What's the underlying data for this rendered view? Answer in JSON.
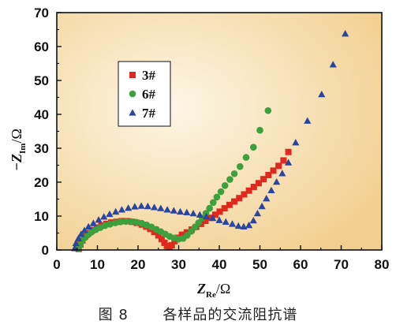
{
  "caption": {
    "figure_no": "图 8",
    "title": "各样品的交流阻抗谱"
  },
  "chart_data": {
    "type": "scatter",
    "xlim": [
      0,
      80
    ],
    "ylim": [
      0,
      70
    ],
    "x_ticks": [
      0,
      10,
      20,
      30,
      40,
      50,
      60,
      70,
      80
    ],
    "y_ticks": [
      0,
      10,
      20,
      30,
      40,
      50,
      60,
      70
    ],
    "xlabel": {
      "main": "Z",
      "sub": "Re",
      "unit": "/Ω"
    },
    "ylabel": {
      "main": "−Z",
      "sub": "Im",
      "unit": "/Ω"
    },
    "legend_position": "top-left",
    "grid": false,
    "background": {
      "center": "#fdf6e6",
      "edge": "#f2cf8f"
    },
    "series": [
      {
        "name": "3#",
        "marker": "square",
        "color": "#e0281e",
        "points": [
          [
            5.4,
            0.3
          ],
          [
            5.8,
            1.6
          ],
          [
            6.3,
            2.8
          ],
          [
            7.0,
            4.0
          ],
          [
            7.8,
            5.0
          ],
          [
            8.8,
            5.9
          ],
          [
            9.9,
            6.6
          ],
          [
            11.0,
            7.2
          ],
          [
            12.2,
            7.7
          ],
          [
            13.4,
            8.1
          ],
          [
            14.7,
            8.3
          ],
          [
            16.0,
            8.5
          ],
          [
            17.3,
            8.5
          ],
          [
            18.5,
            8.3
          ],
          [
            19.7,
            8.0
          ],
          [
            20.9,
            7.5
          ],
          [
            22.0,
            6.9
          ],
          [
            23.0,
            6.2
          ],
          [
            24.0,
            5.3
          ],
          [
            25.0,
            4.3
          ],
          [
            25.8,
            3.2
          ],
          [
            26.5,
            2.1
          ],
          [
            27.1,
            1.2
          ],
          [
            27.7,
            0.8
          ],
          [
            28.3,
            1.4
          ],
          [
            29.0,
            2.6
          ],
          [
            29.8,
            3.6
          ],
          [
            30.8,
            4.5
          ],
          [
            32.0,
            5.2
          ],
          [
            33.2,
            6.0
          ],
          [
            34.3,
            6.8
          ],
          [
            35.5,
            7.7
          ],
          [
            36.6,
            8.6
          ],
          [
            37.8,
            9.5
          ],
          [
            39.0,
            10.4
          ],
          [
            40.1,
            11.3
          ],
          [
            41.3,
            12.3
          ],
          [
            42.5,
            13.3
          ],
          [
            43.7,
            14.3
          ],
          [
            44.9,
            15.3
          ],
          [
            46.1,
            16.4
          ],
          [
            47.3,
            17.5
          ],
          [
            48.5,
            18.6
          ],
          [
            49.7,
            19.7
          ],
          [
            50.9,
            20.9
          ],
          [
            52.1,
            22.1
          ],
          [
            53.3,
            23.4
          ],
          [
            54.6,
            24.8
          ],
          [
            55.8,
            26.4
          ],
          [
            57.0,
            28.9
          ]
        ]
      },
      {
        "name": "6#",
        "marker": "circle",
        "color": "#3ca03c",
        "points": [
          [
            5.3,
            0.4
          ],
          [
            5.7,
            1.5
          ],
          [
            6.2,
            2.6
          ],
          [
            6.9,
            3.6
          ],
          [
            7.7,
            4.5
          ],
          [
            8.6,
            5.3
          ],
          [
            9.6,
            6.0
          ],
          [
            10.7,
            6.6
          ],
          [
            11.9,
            7.2
          ],
          [
            13.1,
            7.6
          ],
          [
            14.4,
            8.0
          ],
          [
            15.7,
            8.3
          ],
          [
            17.0,
            8.4
          ],
          [
            18.3,
            8.4
          ],
          [
            19.6,
            8.2
          ],
          [
            20.9,
            7.9
          ],
          [
            22.1,
            7.4
          ],
          [
            23.3,
            6.8
          ],
          [
            24.5,
            6.1
          ],
          [
            25.6,
            5.4
          ],
          [
            26.7,
            4.7
          ],
          [
            27.8,
            4.0
          ],
          [
            28.9,
            3.5
          ],
          [
            30.0,
            3.2
          ],
          [
            31.1,
            3.4
          ],
          [
            32.1,
            4.3
          ],
          [
            33.1,
            5.5
          ],
          [
            34.0,
            6.7
          ],
          [
            34.9,
            8.0
          ],
          [
            35.8,
            9.4
          ],
          [
            36.7,
            10.8
          ],
          [
            37.6,
            12.3
          ],
          [
            38.5,
            14.0
          ],
          [
            39.4,
            15.6
          ],
          [
            40.4,
            17.2
          ],
          [
            41.4,
            19.0
          ],
          [
            42.6,
            20.8
          ],
          [
            43.7,
            22.5
          ],
          [
            45.1,
            24.6
          ],
          [
            46.6,
            27.3
          ],
          [
            48.4,
            30.3
          ],
          [
            50.0,
            35.3
          ],
          [
            52.0,
            41.1
          ]
        ]
      },
      {
        "name": "7#",
        "marker": "triangle",
        "color": "#2a45a0",
        "points": [
          [
            4.4,
            0.5
          ],
          [
            4.7,
            2.0
          ],
          [
            5.3,
            3.4
          ],
          [
            6.0,
            4.7
          ],
          [
            6.8,
            5.8
          ],
          [
            7.8,
            6.9
          ],
          [
            9.0,
            7.9
          ],
          [
            10.3,
            8.9
          ],
          [
            11.6,
            9.8
          ],
          [
            13.0,
            10.6
          ],
          [
            14.5,
            11.3
          ],
          [
            16.0,
            11.9
          ],
          [
            17.6,
            12.4
          ],
          [
            19.2,
            12.8
          ],
          [
            20.8,
            13.0
          ],
          [
            22.4,
            12.9
          ],
          [
            24.0,
            12.6
          ],
          [
            25.6,
            12.3
          ],
          [
            27.2,
            11.9
          ],
          [
            28.8,
            11.6
          ],
          [
            30.4,
            11.3
          ],
          [
            32.0,
            11.1
          ],
          [
            33.6,
            10.8
          ],
          [
            35.2,
            10.4
          ],
          [
            36.8,
            9.9
          ],
          [
            38.4,
            9.4
          ],
          [
            40.0,
            8.8
          ],
          [
            41.6,
            8.3
          ],
          [
            43.2,
            7.7
          ],
          [
            44.7,
            7.1
          ],
          [
            46.0,
            6.9
          ],
          [
            47.3,
            7.3
          ],
          [
            48.4,
            8.7
          ],
          [
            49.4,
            10.8
          ],
          [
            50.5,
            12.9
          ],
          [
            51.6,
            15.2
          ],
          [
            52.8,
            17.6
          ],
          [
            54.1,
            20.1
          ],
          [
            55.5,
            22.6
          ],
          [
            57.0,
            25.8
          ],
          [
            58.8,
            31.7
          ],
          [
            61.7,
            38.1
          ],
          [
            65.2,
            45.9
          ],
          [
            68.0,
            54.7
          ],
          [
            71.0,
            63.8
          ]
        ]
      }
    ]
  }
}
